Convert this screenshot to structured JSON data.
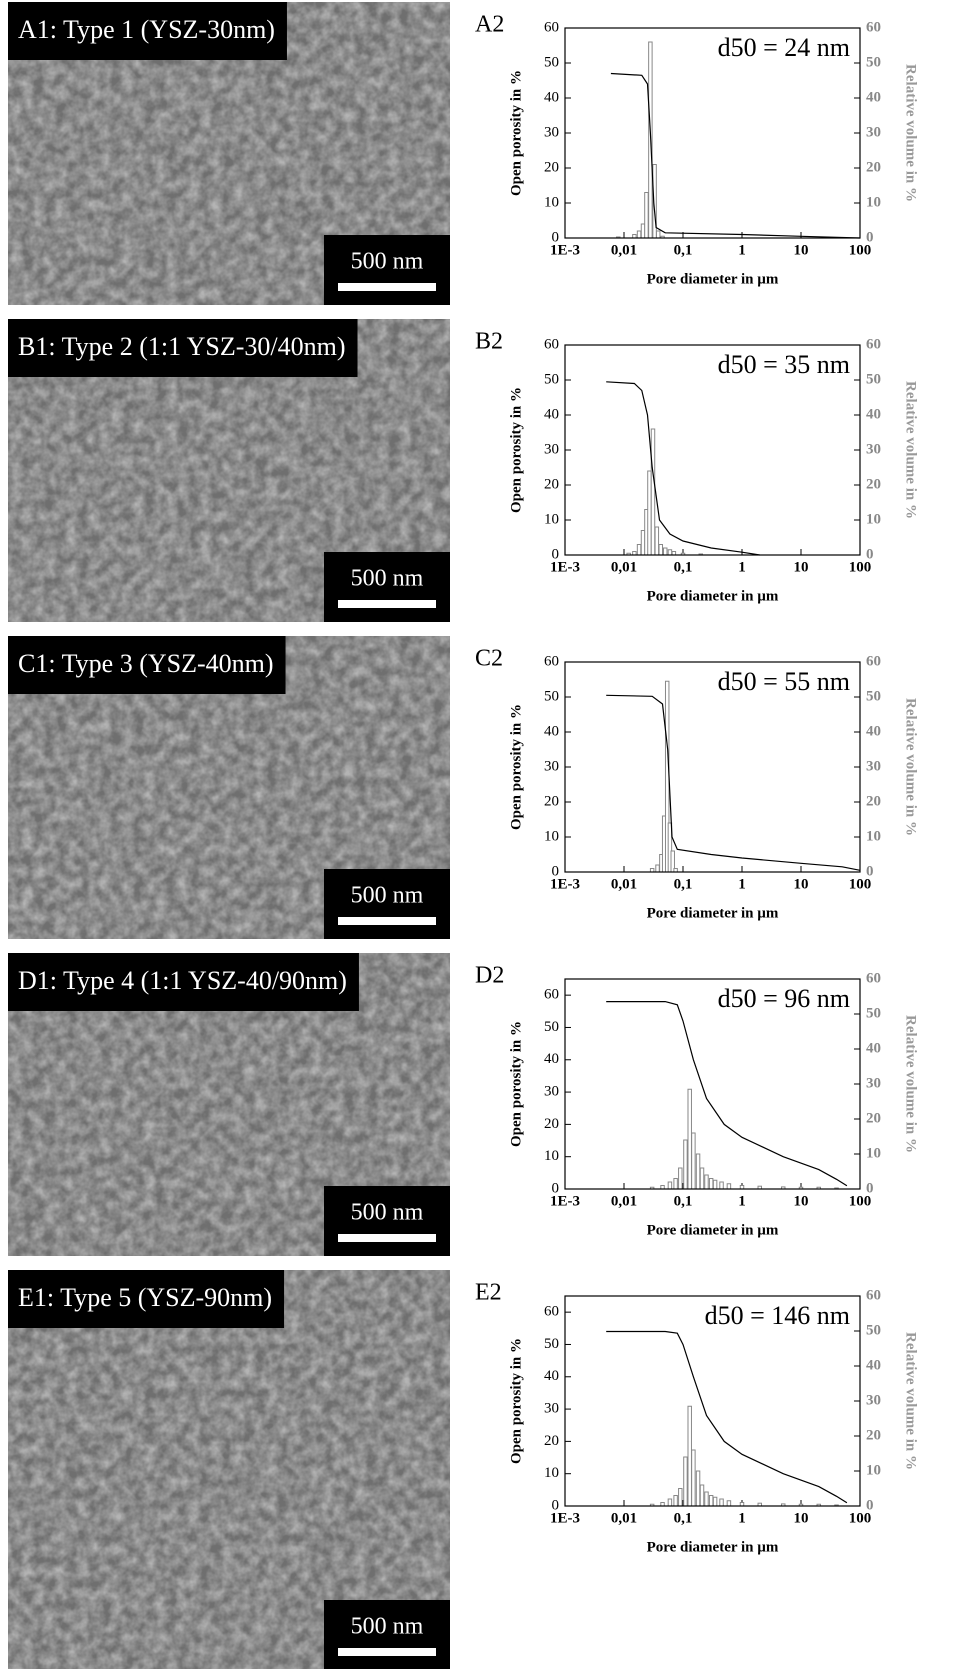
{
  "images": [
    {
      "label": "A1: Type 1 (YSZ-30nm)",
      "scale_bar": "500 nm"
    },
    {
      "label": "B1: Type 2 (1:1 YSZ-30/40nm)",
      "scale_bar": "500 nm"
    },
    {
      "label": "C1: Type 3 (YSZ-40nm)",
      "scale_bar": "500 nm"
    },
    {
      "label": "D1: Type 4 (1:1 YSZ-40/90nm)",
      "scale_bar": "500 nm"
    },
    {
      "label": "E1: Type 5 (YSZ-90nm)",
      "scale_bar": "500 nm"
    }
  ],
  "chart_data": [
    {
      "type": "combo",
      "panel": "A2",
      "annotation": "d50 = 24 nm",
      "xlabel": "Pore diameter in µm",
      "ylabel": "Open porosity in %",
      "y2label": "Relative volume in %",
      "log_x": true,
      "xlim": [
        0.001,
        100
      ],
      "xticks": [
        {
          "value": 0.001,
          "label": "1E-3"
        },
        {
          "value": 0.01,
          "label": "0,01"
        },
        {
          "value": 0.1,
          "label": "0,1"
        },
        1,
        10,
        100
      ],
      "ylim": [
        0,
        60
      ],
      "yticks": [
        0,
        10,
        20,
        30,
        40,
        50,
        60
      ],
      "y2lim": [
        0,
        60
      ],
      "y2ticks": [
        0,
        10,
        20,
        30,
        40,
        50,
        60
      ],
      "series": [
        {
          "type": "line",
          "color": "#000000",
          "x": [
            0.006,
            0.02,
            0.025,
            0.028,
            0.032,
            0.035,
            0.05,
            1,
            10,
            100
          ],
          "values": [
            47,
            46.5,
            44,
            30,
            10,
            3,
            1.5,
            1,
            0.5,
            0
          ]
        },
        {
          "type": "bar",
          "axis": "y2",
          "color": "#888888",
          "x": [
            0.008,
            0.015,
            0.018,
            0.021,
            0.024,
            0.028,
            0.033,
            0.038,
            0.045
          ],
          "values": [
            0.3,
            1,
            2,
            4,
            13,
            56,
            21,
            2,
            0.5
          ]
        }
      ]
    },
    {
      "type": "combo",
      "panel": "B2",
      "annotation": "d50 = 35 nm",
      "xlabel": "Pore diameter in µm",
      "ylabel": "Open porosity in %",
      "y2label": "Relative volume in %",
      "log_x": true,
      "xlim": [
        0.001,
        100
      ],
      "xticks": [
        {
          "value": 0.001,
          "label": "1E-3"
        },
        {
          "value": 0.01,
          "label": "0,01"
        },
        {
          "value": 0.1,
          "label": "0,1"
        },
        1,
        10,
        100
      ],
      "ylim": [
        0,
        60
      ],
      "yticks": [
        0,
        10,
        20,
        30,
        40,
        50,
        60
      ],
      "y2lim": [
        0,
        60
      ],
      "y2ticks": [
        0,
        10,
        20,
        30,
        40,
        50,
        60
      ],
      "series": [
        {
          "type": "line",
          "color": "#000000",
          "x": [
            0.005,
            0.015,
            0.02,
            0.025,
            0.03,
            0.04,
            0.06,
            0.1,
            0.3,
            1,
            2
          ],
          "values": [
            49.5,
            49,
            47,
            40,
            25,
            10,
            6,
            4,
            2,
            0.8,
            0
          ]
        },
        {
          "type": "bar",
          "axis": "y2",
          "color": "#888888",
          "x": [
            0.012,
            0.015,
            0.018,
            0.021,
            0.024,
            0.027,
            0.031,
            0.036,
            0.042,
            0.05,
            0.06,
            0.07,
            0.1,
            0.2
          ],
          "values": [
            0.5,
            1,
            3,
            7,
            13,
            24,
            36,
            8,
            3,
            2,
            1.5,
            1,
            0.5,
            0.3
          ]
        }
      ]
    },
    {
      "type": "combo",
      "panel": "C2",
      "annotation": "d50 = 55 nm",
      "xlabel": "Pore diameter in µm",
      "ylabel": "Open porosity in %",
      "y2label": "Relative volume in %",
      "log_x": true,
      "xlim": [
        0.001,
        100
      ],
      "xticks": [
        {
          "value": 0.001,
          "label": "1E-3"
        },
        {
          "value": 0.01,
          "label": "0,01"
        },
        {
          "value": 0.1,
          "label": "0,1"
        },
        1,
        10,
        100
      ],
      "ylim": [
        0,
        60
      ],
      "yticks": [
        0,
        10,
        20,
        30,
        40,
        50,
        60
      ],
      "y2lim": [
        0,
        60
      ],
      "y2ticks": [
        0,
        10,
        20,
        30,
        40,
        50,
        60
      ],
      "series": [
        {
          "type": "line",
          "color": "#000000",
          "x": [
            0.005,
            0.03,
            0.045,
            0.055,
            0.065,
            0.08,
            0.3,
            1,
            10,
            50,
            100
          ],
          "values": [
            50.5,
            50.2,
            48,
            35,
            10,
            6.5,
            5,
            4,
            2.5,
            1.5,
            0.5
          ]
        },
        {
          "type": "bar",
          "axis": "y2",
          "color": "#888888",
          "x": [
            0.03,
            0.037,
            0.043,
            0.048,
            0.054,
            0.06,
            0.067,
            0.075
          ],
          "values": [
            1,
            2,
            5,
            16,
            54.5,
            14,
            6,
            1
          ]
        }
      ]
    },
    {
      "type": "combo",
      "panel": "D2",
      "annotation": "d50 = 96 nm",
      "xlabel": "Pore diameter in µm",
      "ylabel": "Open porosity in %",
      "y2label": "Relative volume in %",
      "log_x": true,
      "xlim": [
        0.001,
        100
      ],
      "xticks": [
        {
          "value": 0.001,
          "label": "1E-3"
        },
        {
          "value": 0.01,
          "label": "0,01"
        },
        {
          "value": 0.1,
          "label": "0,1"
        },
        1,
        10,
        100
      ],
      "ylim": [
        0,
        65
      ],
      "yticks": [
        0,
        10,
        20,
        30,
        40,
        50,
        60
      ],
      "y2lim": [
        0,
        60
      ],
      "y2ticks": [
        0,
        10,
        20,
        30,
        40,
        50,
        60
      ],
      "series": [
        {
          "type": "line",
          "color": "#000000",
          "x": [
            0.005,
            0.05,
            0.08,
            0.1,
            0.15,
            0.25,
            0.5,
            1,
            5,
            20,
            40,
            60
          ],
          "values": [
            58,
            58,
            57,
            52,
            40,
            28,
            20,
            16,
            10,
            6,
            3,
            1
          ]
        },
        {
          "type": "bar",
          "axis": "y2",
          "color": "#888888",
          "x": [
            0.03,
            0.045,
            0.06,
            0.075,
            0.09,
            0.11,
            0.13,
            0.15,
            0.18,
            0.21,
            0.25,
            0.3,
            0.35,
            0.45,
            0.6,
            1,
            2,
            5,
            10,
            20,
            40
          ],
          "values": [
            0.5,
            1,
            2,
            3,
            6,
            14,
            28.5,
            16,
            10,
            6,
            4,
            3,
            2.5,
            2,
            1.5,
            1,
            0.8,
            0.6,
            0.5,
            0.5,
            0.3
          ]
        }
      ]
    },
    {
      "type": "combo",
      "panel": "E2",
      "annotation": "d50 = 146 nm",
      "xlabel": "Pore diameter in µm",
      "ylabel": "Open porosity in %",
      "y2label": "Relative volume in %",
      "log_x": true,
      "xlim": [
        0.001,
        100
      ],
      "xticks": [
        {
          "value": 0.001,
          "label": "1E-3"
        },
        {
          "value": 0.01,
          "label": "0,01"
        },
        {
          "value": 0.1,
          "label": "0,1"
        },
        1,
        10,
        100
      ],
      "ylim": [
        0,
        65
      ],
      "yticks": [
        0,
        10,
        20,
        30,
        40,
        50,
        60
      ],
      "y2lim": [
        0,
        60
      ],
      "y2ticks": [
        0,
        10,
        20,
        30,
        40,
        50,
        60
      ],
      "series": [
        {
          "type": "line",
          "color": "#000000",
          "x": [
            0.005,
            0.05,
            0.08,
            0.1,
            0.15,
            0.25,
            0.5,
            1,
            5,
            20,
            40,
            60
          ],
          "values": [
            54,
            54,
            53.5,
            50,
            40,
            28,
            20,
            16,
            10,
            6,
            3,
            1
          ]
        },
        {
          "type": "bar",
          "axis": "y2",
          "color": "#888888",
          "x": [
            0.03,
            0.045,
            0.06,
            0.075,
            0.09,
            0.11,
            0.13,
            0.15,
            0.18,
            0.21,
            0.25,
            0.3,
            0.35,
            0.45,
            0.6,
            1,
            2,
            5,
            10,
            20,
            40
          ],
          "values": [
            0.5,
            1,
            2,
            3,
            5,
            14,
            28.5,
            16,
            10,
            6,
            4,
            3,
            2.5,
            2,
            1.5,
            1,
            0.8,
            0.6,
            0.5,
            0.5,
            0.3
          ]
        }
      ]
    }
  ]
}
